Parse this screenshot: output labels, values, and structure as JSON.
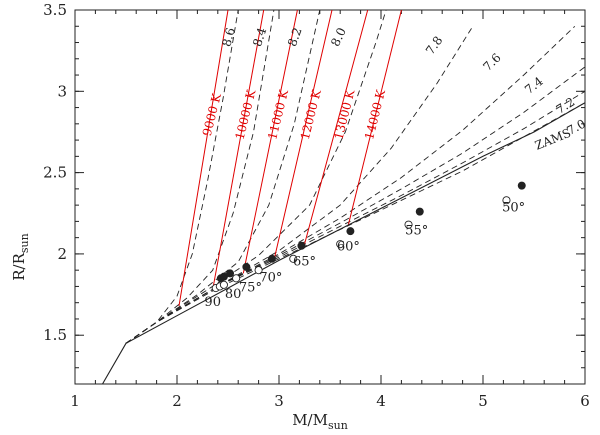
{
  "chart_data": {
    "type": "line",
    "xlabel": {
      "main": "M/M",
      "sub": "sun"
    },
    "ylabel": {
      "main": "R/R",
      "sub": "sun"
    },
    "xlim": [
      1,
      6
    ],
    "ylim": [
      1.2,
      3.5
    ],
    "xticks": [
      1,
      2,
      3,
      4,
      5,
      6
    ],
    "yticks": [
      1.5,
      2,
      2.5,
      3,
      3.5
    ],
    "xtick_labels": [
      "1",
      "2",
      "3",
      "4",
      "5",
      "6"
    ],
    "ytick_labels": [
      "1.5",
      "2",
      "2.5",
      "3",
      "3.5"
    ],
    "zams": {
      "label": "ZAMS",
      "points": [
        [
          1.27,
          1.2
        ],
        [
          1.5,
          1.45
        ],
        [
          2.0,
          1.62
        ],
        [
          2.5,
          1.79
        ],
        [
          3.0,
          1.96
        ],
        [
          3.5,
          2.12
        ],
        [
          4.0,
          2.28
        ],
        [
          4.5,
          2.44
        ],
        [
          5.0,
          2.6
        ],
        [
          5.5,
          2.75
        ],
        [
          6.0,
          2.93
        ]
      ]
    },
    "isochrones": [
      {
        "label": "8.6",
        "points": [
          [
            1.5,
            1.45
          ],
          [
            1.8,
            1.58
          ],
          [
            2.0,
            1.74
          ],
          [
            2.15,
            2.0
          ],
          [
            2.3,
            2.45
          ],
          [
            2.45,
            2.95
          ],
          [
            2.6,
            3.5
          ]
        ]
      },
      {
        "label": "8.4",
        "points": [
          [
            1.5,
            1.45
          ],
          [
            1.8,
            1.58
          ],
          [
            2.1,
            1.73
          ],
          [
            2.35,
            1.9
          ],
          [
            2.55,
            2.25
          ],
          [
            2.75,
            2.75
          ],
          [
            2.95,
            3.5
          ]
        ]
      },
      {
        "label": "8.2",
        "points": [
          [
            1.5,
            1.45
          ],
          [
            1.8,
            1.58
          ],
          [
            2.2,
            1.75
          ],
          [
            2.6,
            1.95
          ],
          [
            2.9,
            2.3
          ],
          [
            3.15,
            2.8
          ],
          [
            3.4,
            3.5
          ]
        ]
      },
      {
        "label": "8.0",
        "points": [
          [
            1.5,
            1.45
          ],
          [
            1.8,
            1.58
          ],
          [
            2.3,
            1.78
          ],
          [
            2.8,
            1.99
          ],
          [
            3.3,
            2.3
          ],
          [
            3.65,
            2.75
          ],
          [
            3.95,
            3.3
          ],
          [
            4.05,
            3.5
          ]
        ]
      },
      {
        "label": "7.8",
        "points": [
          [
            1.5,
            1.45
          ],
          [
            1.8,
            1.58
          ],
          [
            2.4,
            1.8
          ],
          [
            3.0,
            2.02
          ],
          [
            3.6,
            2.3
          ],
          [
            4.1,
            2.65
          ],
          [
            4.55,
            3.05
          ],
          [
            4.9,
            3.4
          ]
        ]
      },
      {
        "label": "7.6",
        "points": [
          [
            1.5,
            1.45
          ],
          [
            1.8,
            1.58
          ],
          [
            2.4,
            1.8
          ],
          [
            3.0,
            2.0
          ],
          [
            3.6,
            2.22
          ],
          [
            4.2,
            2.47
          ],
          [
            4.8,
            2.76
          ],
          [
            5.4,
            3.1
          ],
          [
            5.9,
            3.4
          ]
        ]
      },
      {
        "label": "7.4",
        "points": [
          [
            1.5,
            1.45
          ],
          [
            1.8,
            1.58
          ],
          [
            2.4,
            1.8
          ],
          [
            3.0,
            1.99
          ],
          [
            3.6,
            2.19
          ],
          [
            4.2,
            2.4
          ],
          [
            4.8,
            2.62
          ],
          [
            5.4,
            2.87
          ],
          [
            6.0,
            3.15
          ]
        ]
      },
      {
        "label": "7.2",
        "points": [
          [
            1.5,
            1.45
          ],
          [
            1.8,
            1.58
          ],
          [
            2.4,
            1.8
          ],
          [
            3.0,
            1.98
          ],
          [
            3.6,
            2.17
          ],
          [
            4.2,
            2.36
          ],
          [
            4.8,
            2.56
          ],
          [
            5.4,
            2.77
          ],
          [
            6.0,
            3.0
          ]
        ]
      },
      {
        "label": "7.0",
        "points": [
          [
            1.5,
            1.45
          ],
          [
            1.8,
            1.58
          ],
          [
            2.4,
            1.79
          ],
          [
            3.0,
            1.97
          ],
          [
            3.6,
            2.15
          ],
          [
            4.2,
            2.33
          ],
          [
            4.8,
            2.51
          ],
          [
            5.4,
            2.72
          ],
          [
            6.0,
            2.93
          ]
        ]
      }
    ],
    "teff_lines": [
      {
        "label": "9000 K",
        "points": [
          [
            2.02,
            1.68
          ],
          [
            2.5,
            3.5
          ]
        ]
      },
      {
        "label": "10000 K",
        "points": [
          [
            2.35,
            1.78
          ],
          [
            2.85,
            3.5
          ]
        ]
      },
      {
        "label": "11000 K",
        "points": [
          [
            2.65,
            1.88
          ],
          [
            3.18,
            3.5
          ]
        ]
      },
      {
        "label": "12000 K",
        "points": [
          [
            2.95,
            1.96
          ],
          [
            3.52,
            3.5
          ]
        ]
      },
      {
        "label": "13000 K",
        "points": [
          [
            3.25,
            2.06
          ],
          [
            3.87,
            3.5
          ]
        ]
      },
      {
        "label": "14000 K",
        "points": [
          [
            3.68,
            2.18
          ],
          [
            4.2,
            3.5
          ]
        ]
      }
    ],
    "filled_points": [
      [
        2.43,
        1.85
      ],
      [
        2.46,
        1.86
      ],
      [
        2.52,
        1.88
      ],
      [
        2.68,
        1.92
      ],
      [
        2.93,
        1.97
      ],
      [
        3.22,
        2.05
      ],
      [
        3.7,
        2.14
      ],
      [
        4.38,
        2.26
      ],
      [
        5.38,
        2.42
      ]
    ],
    "open_points": [
      [
        2.38,
        1.79
      ],
      [
        2.42,
        1.8
      ],
      [
        2.46,
        1.81
      ],
      [
        2.58,
        1.85
      ],
      [
        2.8,
        1.9
      ],
      [
        3.14,
        1.97
      ],
      [
        3.6,
        2.06
      ],
      [
        4.27,
        2.18
      ],
      [
        5.23,
        2.33
      ]
    ],
    "inclination_labels": [
      {
        "text": "90",
        "x": 2.35,
        "y": 1.68
      },
      {
        "text": "80",
        "x": 2.55,
        "y": 1.73
      },
      {
        "text": "75°",
        "x": 2.72,
        "y": 1.77
      },
      {
        "text": "70°",
        "x": 2.92,
        "y": 1.83
      },
      {
        "text": "65°",
        "x": 3.25,
        "y": 1.93
      },
      {
        "text": "60°",
        "x": 3.68,
        "y": 2.02
      },
      {
        "text": "55°",
        "x": 4.35,
        "y": 2.12
      },
      {
        "text": "50°",
        "x": 5.3,
        "y": 2.26
      }
    ]
  },
  "colors": {
    "red": "#e00000",
    "black": "#222222"
  }
}
